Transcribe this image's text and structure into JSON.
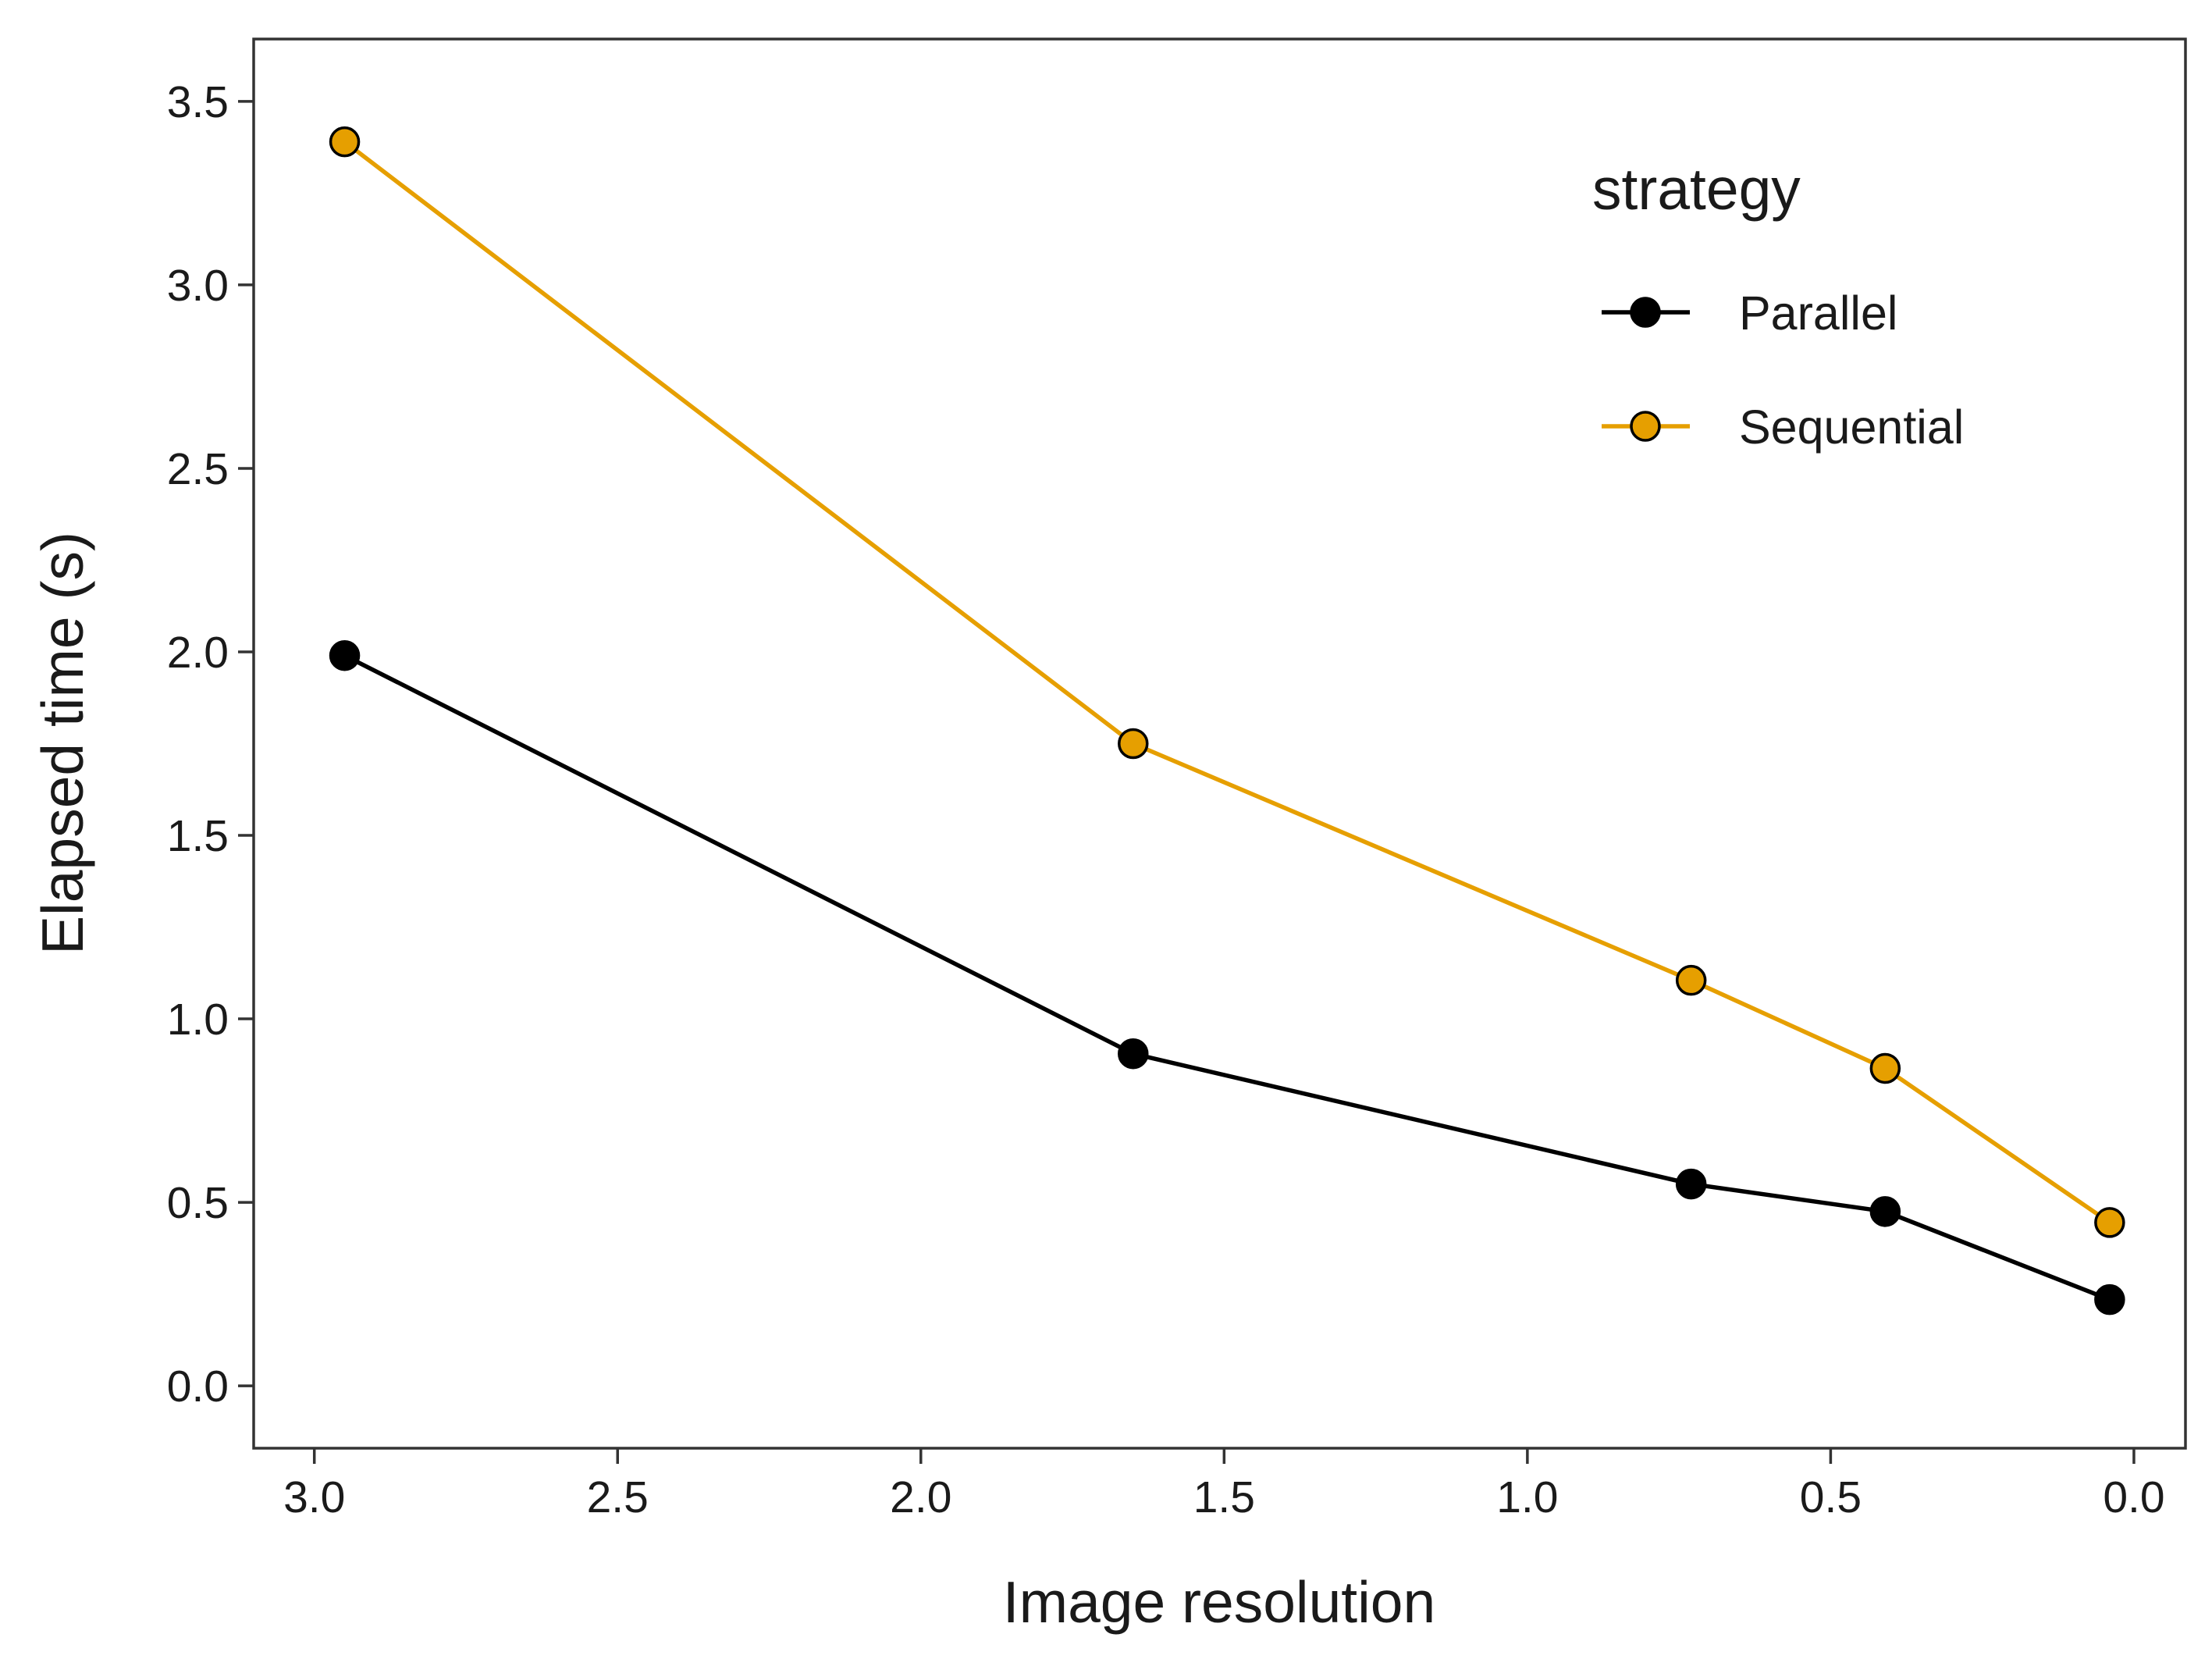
{
  "chart_data": {
    "type": "line",
    "title": "",
    "xlabel": "Image resolution",
    "ylabel": "Elapsed time (s)",
    "xlim": [
      3.1,
      -0.085
    ],
    "ylim": [
      -0.17,
      3.67
    ],
    "x_reversed": true,
    "x_ticks": [
      3.0,
      2.5,
      2.0,
      1.5,
      1.0,
      0.5,
      0.0
    ],
    "x_tick_labels": [
      "3.0",
      "2.5",
      "2.0",
      "1.5",
      "1.0",
      "0.5",
      "0.0"
    ],
    "y_ticks": [
      0.0,
      0.5,
      1.0,
      1.5,
      2.0,
      2.5,
      3.0,
      3.5
    ],
    "y_tick_labels": [
      "0.0",
      "0.5",
      "1.0",
      "1.5",
      "2.0",
      "2.5",
      "3.0",
      "3.5"
    ],
    "grid": false,
    "legend": {
      "title": "strategy",
      "position": "top-right"
    },
    "series": [
      {
        "name": "Parallel",
        "color": "#000000",
        "marker_fill": "#000000",
        "x": [
          2.95,
          1.65,
          0.73,
          0.41,
          0.04
        ],
        "y": [
          1.99,
          0.905,
          0.55,
          0.475,
          0.235
        ]
      },
      {
        "name": "Sequential",
        "color": "#E69F00",
        "marker_fill": "#E69F00",
        "x": [
          2.95,
          1.65,
          0.73,
          0.41,
          0.04
        ],
        "y": [
          3.39,
          1.75,
          1.105,
          0.865,
          0.445
        ]
      }
    ]
  }
}
